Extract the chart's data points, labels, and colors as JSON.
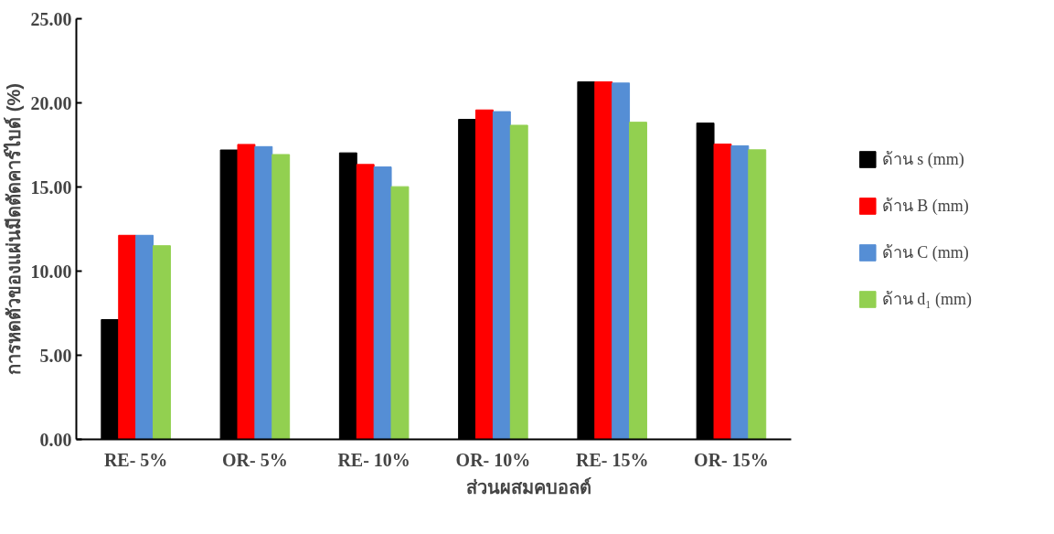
{
  "chart_data": {
    "type": "bar",
    "xlabel": "ส่วนผสมคบอลต์",
    "ylabel": "การหดตัวของแผ่นมีดตัดคาร์ไบด์ (%)",
    "categories": [
      "RE- 5%",
      "OR- 5%",
      "RE- 10%",
      "OR- 10%",
      "RE- 15%",
      "OR- 15%"
    ],
    "series": [
      {
        "name": "ด้าน s (mm)",
        "color": "#000000",
        "values": [
          7.12,
          17.2,
          17.03,
          19.02,
          21.25,
          18.8
        ]
      },
      {
        "name": "ด้าน B (mm)",
        "color": "#ff0000",
        "values": [
          12.13,
          17.53,
          16.34,
          19.58,
          21.25,
          17.55
        ]
      },
      {
        "name": "ด้าน C (mm)",
        "color": "#558ed5",
        "values": [
          12.13,
          17.4,
          16.19,
          19.48,
          21.18,
          17.45
        ]
      },
      {
        "name": "ด้าน d₁ (mm)",
        "color": "#92d050",
        "values": [
          11.51,
          16.93,
          15.02,
          18.67,
          18.85,
          17.21
        ]
      }
    ],
    "ylim": [
      0,
      25
    ],
    "yticks": [
      {
        "value": 0,
        "label": "0.00"
      },
      {
        "value": 5,
        "label": "5.00"
      },
      {
        "value": 10,
        "label": "10.00"
      },
      {
        "value": 15,
        "label": "15.00"
      },
      {
        "value": 20,
        "label": "20.00"
      },
      {
        "value": 25,
        "label": "25.00"
      }
    ],
    "grid": false,
    "legend": "right"
  }
}
